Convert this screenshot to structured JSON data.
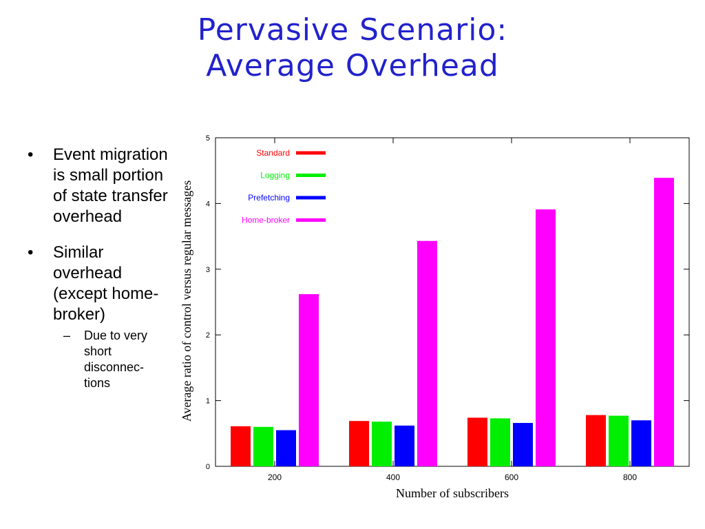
{
  "slide": {
    "title_line1": "Pervasive Scenario:",
    "title_line2": "Average Overhead"
  },
  "bullets": [
    {
      "text": "Event migration is small portion of state transfer overhead"
    },
    {
      "text": "Similar overhead (except home-broker)",
      "sub": "Due to very short disconnec-tions"
    }
  ],
  "chart_data": {
    "type": "bar",
    "xlabel": "Number of subscribers",
    "ylabel": "Average ratio of control versus regular messages",
    "categories": [
      "200",
      "400",
      "600",
      "800"
    ],
    "ylim": [
      0,
      5
    ],
    "yticks": [
      "0",
      "1",
      "2",
      "3",
      "4",
      "5"
    ],
    "legend_position": "top-left",
    "grid": false,
    "series": [
      {
        "name": "Standard",
        "color": "#ff0000",
        "values": [
          0.61,
          0.69,
          0.74,
          0.78
        ]
      },
      {
        "name": "Logging",
        "color": "#00ee00",
        "values": [
          0.6,
          0.68,
          0.73,
          0.77
        ]
      },
      {
        "name": "Prefetching",
        "color": "#0000ff",
        "values": [
          0.55,
          0.62,
          0.66,
          0.7
        ]
      },
      {
        "name": "Home-broker",
        "color": "#ff00ff",
        "values": [
          2.62,
          3.43,
          3.91,
          4.39
        ]
      }
    ]
  }
}
